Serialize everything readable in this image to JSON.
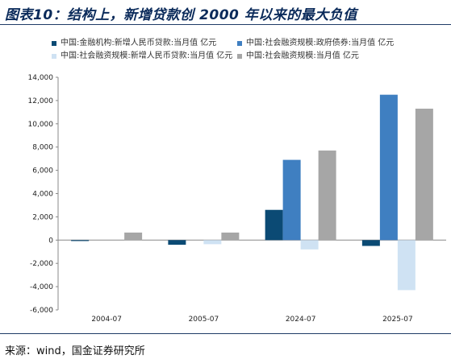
{
  "title": "图表10：结构上，新增贷款创 2000 年以来的最大负值",
  "source": "来源：wind，国金证券研究所",
  "chart_data": {
    "type": "bar",
    "categories": [
      "2004-07",
      "2005-07",
      "2024-07",
      "2025-07"
    ],
    "series": [
      {
        "name": "中国:金融机构:新增人民币贷款:当月值 亿元",
        "color": "#0b4a74",
        "values": [
          -80,
          -400,
          2600,
          -500
        ]
      },
      {
        "name": "中国:社会融资规模:政府债券:当月值 亿元",
        "color": "#3f7fc1",
        "values": [
          0,
          0,
          6900,
          12500
        ]
      },
      {
        "name": "中国:社会融资规模:新增人民币贷款:当月值 亿元",
        "color": "#cfe2f3",
        "values": [
          0,
          -350,
          -800,
          -4300
        ]
      },
      {
        "name": "中国:社会融资规模:当月值 亿元",
        "color": "#a6a6a6",
        "values": [
          650,
          650,
          7700,
          11300
        ]
      }
    ],
    "y_ticks": [
      "14,000",
      "12,000",
      "10,000",
      "8,000",
      "6,000",
      "4,000",
      "2,000",
      "0",
      "-2,000",
      "-4,000",
      "-6,000"
    ],
    "ylim": [
      -6000,
      14000
    ],
    "grid": false,
    "legend_position": "top"
  }
}
